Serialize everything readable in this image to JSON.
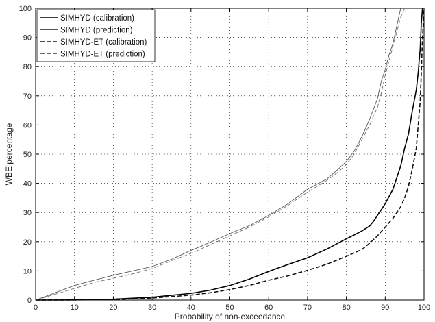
{
  "chart_data": {
    "type": "line",
    "title": "",
    "xlabel": "Probability of non-exceedance",
    "ylabel": "WBE percentage",
    "xlim": [
      0,
      100
    ],
    "ylim": [
      0,
      100
    ],
    "xticks": [
      "0",
      "10",
      "20",
      "30",
      "40",
      "50",
      "60",
      "70",
      "80",
      "90",
      "100"
    ],
    "yticks": [
      "0",
      "10",
      "20",
      "30",
      "40",
      "50",
      "60",
      "70",
      "80",
      "90",
      "100"
    ],
    "grid": "on, dotted",
    "legend_position": "top-left",
    "series": [
      {
        "name": "SIMHYD (calibration)",
        "color": "#000000",
        "style": "solid-thick",
        "x": [
          0,
          10,
          20,
          30,
          40,
          45,
          50,
          55,
          60,
          62,
          65,
          70,
          75,
          80,
          82,
          84,
          86,
          87,
          88,
          90,
          92,
          94,
          95,
          96,
          97,
          98,
          98.5,
          99,
          99.3,
          99.6
        ],
        "y": [
          0,
          0.05,
          0.3,
          1.0,
          2.3,
          3.4,
          5.0,
          7.2,
          9.8,
          10.8,
          12.2,
          14.5,
          17.5,
          21.0,
          22.3,
          23.7,
          25.4,
          27.0,
          29.0,
          33.0,
          38.0,
          46.0,
          52.0,
          57.0,
          65.0,
          72.0,
          78.0,
          86.0,
          95.0,
          100
        ]
      },
      {
        "name": "SIMHYD (prediction)",
        "color": "#555555",
        "style": "solid-thin",
        "x": [
          0,
          5,
          10,
          15,
          20,
          25,
          30,
          35,
          40,
          45,
          50,
          55,
          60,
          65,
          70,
          75,
          78,
          80,
          82,
          84,
          86,
          88,
          89,
          90,
          91,
          92,
          93,
          93.5,
          94
        ],
        "y": [
          0,
          2.5,
          5.0,
          6.8,
          8.5,
          10.0,
          11.5,
          14.0,
          17.0,
          19.8,
          22.8,
          25.5,
          29.0,
          33.0,
          38.0,
          41.5,
          45.0,
          47.5,
          51.0,
          56.0,
          62.0,
          69.0,
          75.0,
          79.0,
          84.0,
          88.0,
          94.0,
          97.0,
          100
        ]
      },
      {
        "name": "SIMHYD-ET (calibration)",
        "color": "#111111",
        "style": "dashed-thick",
        "x": [
          0,
          10,
          20,
          30,
          40,
          45,
          50,
          55,
          60,
          65,
          70,
          75,
          80,
          84,
          86,
          88,
          90,
          92,
          94,
          95,
          96,
          97,
          98,
          98.5,
          99,
          99.3,
          99.6,
          100
        ],
        "y": [
          0,
          0.03,
          0.2,
          0.7,
          1.7,
          2.5,
          3.6,
          5.0,
          6.8,
          8.3,
          10.2,
          12.3,
          15.0,
          17.3,
          19.5,
          22.0,
          25.0,
          28.0,
          32.0,
          35.0,
          39.0,
          45.0,
          52.0,
          60.0,
          68.0,
          78.0,
          90.0,
          100
        ]
      },
      {
        "name": "SIMHYD-ET (prediction)",
        "color": "#6a6a6a",
        "style": "dashed-thin",
        "x": [
          0,
          5,
          10,
          15,
          20,
          25,
          30,
          35,
          40,
          45,
          50,
          55,
          60,
          65,
          70,
          75,
          78,
          80,
          82,
          84,
          86,
          88,
          89,
          90,
          91,
          92,
          93,
          94,
          95
        ],
        "y": [
          0,
          2.0,
          4.0,
          6.0,
          7.5,
          9.0,
          10.8,
          13.5,
          16.0,
          19.0,
          22.0,
          25.0,
          28.5,
          32.5,
          37.0,
          41.0,
          44.0,
          46.5,
          50.0,
          55.0,
          60.0,
          66.0,
          71.0,
          77.0,
          82.0,
          87.0,
          92.0,
          97.0,
          100
        ]
      }
    ]
  }
}
